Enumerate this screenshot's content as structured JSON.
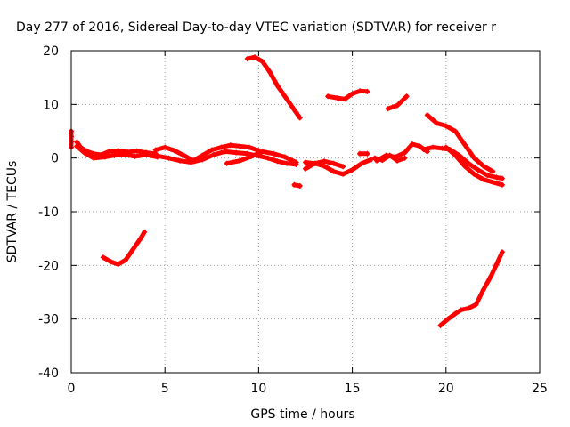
{
  "chart_data": {
    "type": "scatter",
    "title": "Day 277 of 2016, Sidereal Day-to-day VTEC variation (SDTVAR) for receiver r",
    "xlabel": "GPS time / hours",
    "ylabel": "SDTVAR / TECUs",
    "xlim": [
      0,
      25
    ],
    "ylim": [
      -40,
      20
    ],
    "xticks": [
      0,
      5,
      10,
      15,
      20,
      25
    ],
    "yticks": [
      -40,
      -30,
      -20,
      -10,
      0,
      10,
      20
    ],
    "grid": true,
    "series_color": "#ff0000",
    "segments": [
      [
        [
          0.0,
          5
        ],
        [
          0.0,
          4
        ],
        [
          0.0,
          3
        ],
        [
          0.0,
          2
        ]
      ],
      [
        [
          0.3,
          3
        ],
        [
          0.5,
          2
        ],
        [
          0.8,
          1.3
        ],
        [
          1.2,
          0.8
        ],
        [
          1.6,
          0.6
        ],
        [
          2.0,
          1.2
        ],
        [
          2.5,
          1.4
        ],
        [
          3.0,
          1.1
        ],
        [
          3.5,
          1.3
        ],
        [
          4.0,
          1.0
        ],
        [
          4.5,
          0.8
        ]
      ],
      [
        [
          0.3,
          2.2
        ],
        [
          0.7,
          1.0
        ],
        [
          1.2,
          0.0
        ],
        [
          1.8,
          0.2
        ],
        [
          2.3,
          0.5
        ],
        [
          2.8,
          0.7
        ],
        [
          3.4,
          0.3
        ],
        [
          4.0,
          0.6
        ],
        [
          4.6,
          0.2
        ]
      ],
      [
        [
          4.5,
          1.5
        ],
        [
          5.0,
          2.0
        ],
        [
          5.5,
          1.4
        ],
        [
          6.0,
          0.5
        ],
        [
          6.5,
          -0.5
        ],
        [
          7.0,
          0.5
        ],
        [
          7.5,
          1.5
        ],
        [
          8.0,
          2.0
        ],
        [
          8.5,
          2.4
        ],
        [
          9.0,
          2.2
        ],
        [
          9.5,
          2.0
        ],
        [
          10.0,
          1.4
        ]
      ],
      [
        [
          4.6,
          0.4
        ],
        [
          5.2,
          0.0
        ],
        [
          5.8,
          -0.5
        ],
        [
          6.4,
          -0.8
        ],
        [
          7.0,
          -0.3
        ],
        [
          7.6,
          0.6
        ],
        [
          8.2,
          1.2
        ],
        [
          8.8,
          1.0
        ],
        [
          9.4,
          0.8
        ],
        [
          10.0,
          0.4
        ],
        [
          10.5,
          0.0
        ],
        [
          11.0,
          -0.6
        ],
        [
          11.5,
          -1.0
        ],
        [
          12.0,
          -1.2
        ]
      ],
      [
        [
          8.3,
          -1.0
        ],
        [
          9.0,
          -0.5
        ],
        [
          9.6,
          0.3
        ],
        [
          10.2,
          1.2
        ],
        [
          10.8,
          0.8
        ],
        [
          11.4,
          0.2
        ],
        [
          12.0,
          -0.8
        ]
      ],
      [
        [
          12.5,
          -0.8
        ],
        [
          13.0,
          -1.0
        ],
        [
          13.5,
          -1.5
        ],
        [
          14.0,
          -2.5
        ],
        [
          14.5,
          -3.0
        ],
        [
          15.0,
          -2.2
        ],
        [
          15.5,
          -1.0
        ],
        [
          16.0,
          -0.3
        ]
      ],
      [
        [
          12.5,
          -2.0
        ],
        [
          13.0,
          -1.0
        ],
        [
          13.5,
          -0.6
        ],
        [
          14.0,
          -1.0
        ],
        [
          14.5,
          -1.6
        ]
      ],
      [
        [
          15.4,
          0.8
        ],
        [
          15.8,
          0.8
        ]
      ],
      [
        [
          16.3,
          -0.5
        ],
        [
          16.8,
          0.5
        ],
        [
          17.3,
          0.2
        ],
        [
          17.8,
          1.0
        ],
        [
          18.2,
          2.6
        ],
        [
          18.6,
          2.2
        ],
        [
          19.0,
          1.2
        ]
      ],
      [
        [
          16.2,
          0.0
        ],
        [
          16.6,
          -0.4
        ],
        [
          17.0,
          0.5
        ],
        [
          17.4,
          -0.5
        ],
        [
          17.8,
          0.0
        ]
      ],
      [
        [
          18.8,
          1.6
        ],
        [
          19.3,
          2.0
        ],
        [
          19.8,
          1.8
        ],
        [
          20.2,
          1.6
        ],
        [
          20.7,
          0.5
        ],
        [
          21.2,
          -1.0
        ],
        [
          21.7,
          -2.2
        ],
        [
          22.2,
          -3.2
        ],
        [
          22.7,
          -3.6
        ],
        [
          23.0,
          -3.8
        ]
      ],
      [
        [
          19.0,
          8.0
        ],
        [
          19.5,
          6.5
        ],
        [
          20.0,
          6.0
        ],
        [
          20.5,
          5.0
        ],
        [
          21.0,
          2.5
        ],
        [
          21.5,
          0.0
        ],
        [
          22.0,
          -1.5
        ],
        [
          22.5,
          -2.5
        ]
      ],
      [
        [
          20.0,
          2.0
        ],
        [
          20.5,
          0.5
        ],
        [
          21.0,
          -1.5
        ],
        [
          21.5,
          -3.0
        ],
        [
          22.0,
          -4.0
        ],
        [
          22.5,
          -4.5
        ],
        [
          23.0,
          -5.0
        ]
      ],
      [
        [
          11.9,
          -5.0
        ],
        [
          12.2,
          -5.2
        ]
      ],
      [
        [
          9.4,
          18.5
        ],
        [
          9.8,
          18.8
        ],
        [
          10.2,
          18.0
        ],
        [
          10.6,
          16.0
        ],
        [
          11.0,
          13.5
        ],
        [
          11.5,
          11.0
        ],
        [
          12.0,
          8.5
        ],
        [
          12.2,
          7.5
        ]
      ],
      [
        [
          13.7,
          11.5
        ],
        [
          14.2,
          11.2
        ],
        [
          14.6,
          11.0
        ],
        [
          15.0,
          12.0
        ],
        [
          15.4,
          12.5
        ],
        [
          15.8,
          12.4
        ]
      ],
      [
        [
          16.9,
          9.2
        ],
        [
          17.4,
          9.8
        ],
        [
          17.9,
          11.5
        ]
      ],
      [
        [
          1.7,
          -18.5
        ],
        [
          2.1,
          -19.3
        ],
        [
          2.5,
          -19.8
        ],
        [
          2.9,
          -19.0
        ],
        [
          3.3,
          -17.0
        ],
        [
          3.7,
          -15.0
        ],
        [
          3.9,
          -13.8
        ]
      ],
      [
        [
          19.7,
          -31.2
        ],
        [
          20.1,
          -30.0
        ],
        [
          20.5,
          -29.0
        ],
        [
          20.8,
          -28.3
        ],
        [
          21.2,
          -28.0
        ],
        [
          21.6,
          -27.3
        ],
        [
          22.0,
          -24.5
        ],
        [
          22.4,
          -22.0
        ],
        [
          22.7,
          -19.8
        ],
        [
          23.0,
          -17.5
        ]
      ]
    ]
  }
}
